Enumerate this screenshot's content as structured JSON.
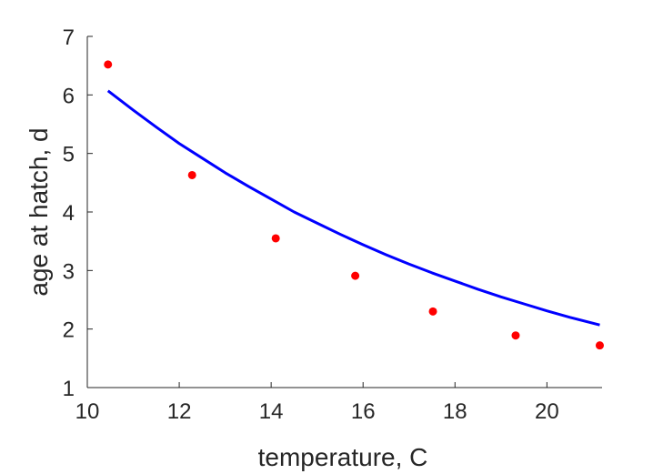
{
  "chart_data": {
    "type": "scatter",
    "xlabel": "temperature, C",
    "ylabel": "age at hatch, d",
    "xlim": [
      10,
      21.2
    ],
    "ylim": [
      1,
      7
    ],
    "xticks": [
      10,
      12,
      14,
      16,
      18,
      20
    ],
    "yticks": [
      1,
      2,
      3,
      4,
      5,
      6,
      7
    ],
    "grid": false,
    "series": [
      {
        "kind": "points",
        "color": "#ff0000",
        "x": [
          10.45,
          12.28,
          14.1,
          15.83,
          17.52,
          19.32,
          21.15
        ],
        "y": [
          6.52,
          4.63,
          3.55,
          2.91,
          2.3,
          1.89,
          1.72
        ]
      },
      {
        "kind": "line",
        "color": "#0000ff",
        "x": [
          10.45,
          11.0,
          11.5,
          12.0,
          12.5,
          13.0,
          13.5,
          14.0,
          14.5,
          15.0,
          15.5,
          16.0,
          16.5,
          17.0,
          17.5,
          18.0,
          18.5,
          19.0,
          19.5,
          20.0,
          20.5,
          21.15
        ],
        "y": [
          6.07,
          5.74,
          5.45,
          5.17,
          4.92,
          4.67,
          4.44,
          4.22,
          4.0,
          3.81,
          3.62,
          3.44,
          3.27,
          3.11,
          2.96,
          2.82,
          2.68,
          2.55,
          2.43,
          2.31,
          2.2,
          2.07
        ]
      }
    ]
  }
}
